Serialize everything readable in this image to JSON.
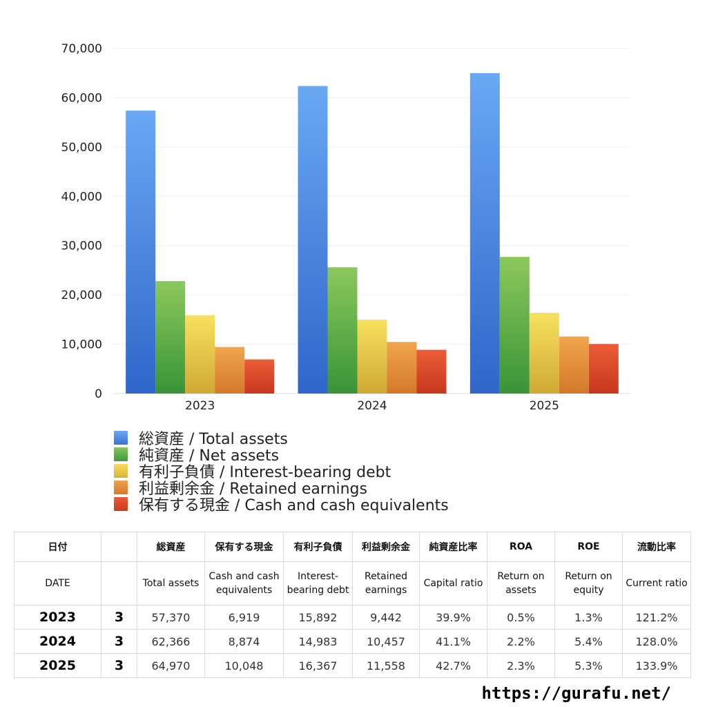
{
  "chart_data": {
    "type": "bar",
    "categories": [
      "2023",
      "2024",
      "2025"
    ],
    "series": [
      {
        "name": "総資産 / Total assets",
        "values": [
          57370,
          62366,
          64970
        ],
        "color": "#3f7fe0"
      },
      {
        "name": "純資産 / Net assets",
        "values": [
          22800,
          25600,
          27700
        ],
        "color": "#4ea846"
      },
      {
        "name": "有利子負債 / Interest-bearing debt",
        "values": [
          15892,
          14983,
          16367
        ],
        "color": "#e8c93c"
      },
      {
        "name": "利益剰余金 / Retained earnings",
        "values": [
          9442,
          10457,
          11558
        ],
        "color": "#e38a35"
      },
      {
        "name": "保有する現金 /  Cash and cash equivalents",
        "values": [
          6919,
          8874,
          10048
        ],
        "color": "#d84a2a"
      }
    ],
    "ylim": [
      0,
      70000
    ],
    "yticks": [
      "0",
      "10,000",
      "20,000",
      "30,000",
      "40,000",
      "50,000",
      "60,000",
      "70,000"
    ],
    "grid": true,
    "legend_position": "bottom"
  },
  "table": {
    "header_jp": [
      "日付",
      "",
      "総資産",
      "保有する現金",
      "有利子負債",
      "利益剰余金",
      "純資産比率",
      "ROA",
      "ROE",
      "流動比率"
    ],
    "header_en": [
      "DATE",
      "",
      "Total assets",
      "Cash and cash equivalents",
      "Interest-bearing debt",
      "Retained earnings",
      "Capital ratio",
      "Return on assets",
      "Return on equity",
      "Current ratio"
    ],
    "rows": [
      [
        "2023",
        "3",
        "57,370",
        "6,919",
        "15,892",
        "9,442",
        "39.9%",
        "0.5%",
        "1.3%",
        "121.2%"
      ],
      [
        "2024",
        "3",
        "62,366",
        "8,874",
        "14,983",
        "10,457",
        "41.1%",
        "2.2%",
        "5.4%",
        "128.0%"
      ],
      [
        "2025",
        "3",
        "64,970",
        "10,048",
        "16,367",
        "11,558",
        "42.7%",
        "2.3%",
        "5.3%",
        "133.9%"
      ]
    ]
  },
  "footer": {
    "url": "https://gurafu.net/"
  }
}
